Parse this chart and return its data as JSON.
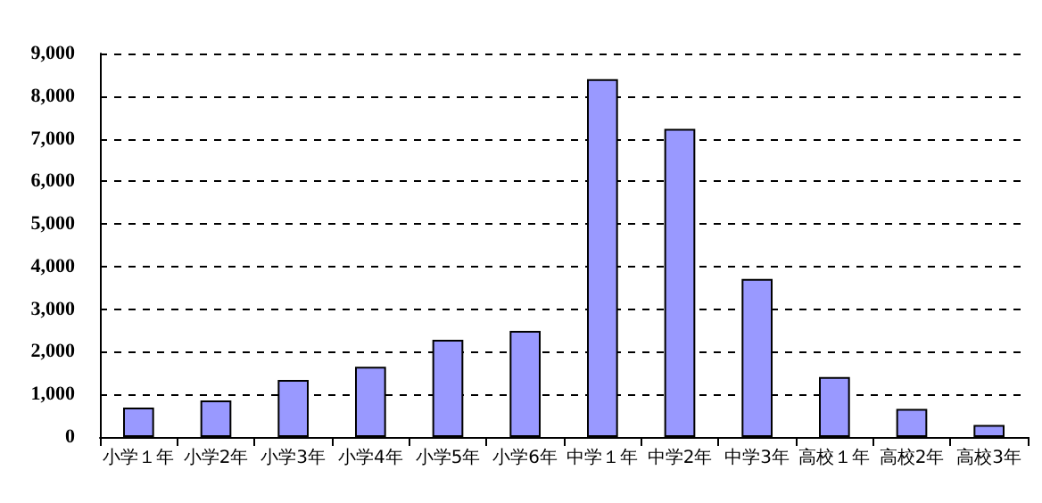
{
  "chart_data": {
    "type": "bar",
    "categories": [
      "小学１年",
      "小学2年",
      "小学3年",
      "小学4年",
      "小学5年",
      "小学6年",
      "中学１年",
      "中学2年",
      "中学3年",
      "高校１年",
      "高校2年",
      "高校3年"
    ],
    "values": [
      690,
      860,
      1340,
      1650,
      2280,
      2490,
      8400,
      7230,
      3710,
      1410,
      660,
      280
    ],
    "color": "#9999ff",
    "ylim": [
      0,
      9000
    ],
    "yticks": [
      {
        "value": 0,
        "label": "0"
      },
      {
        "value": 1000,
        "label": "1,000"
      },
      {
        "value": 2000,
        "label": "2,000"
      },
      {
        "value": 3000,
        "label": "3,000"
      },
      {
        "value": 4000,
        "label": "4,000"
      },
      {
        "value": 5000,
        "label": "5,000"
      },
      {
        "value": 6000,
        "label": "6,000"
      },
      {
        "value": 7000,
        "label": "7,000"
      },
      {
        "value": 8000,
        "label": "8,000"
      },
      {
        "value": 9000,
        "label": "9,000"
      }
    ],
    "grid": "y"
  }
}
